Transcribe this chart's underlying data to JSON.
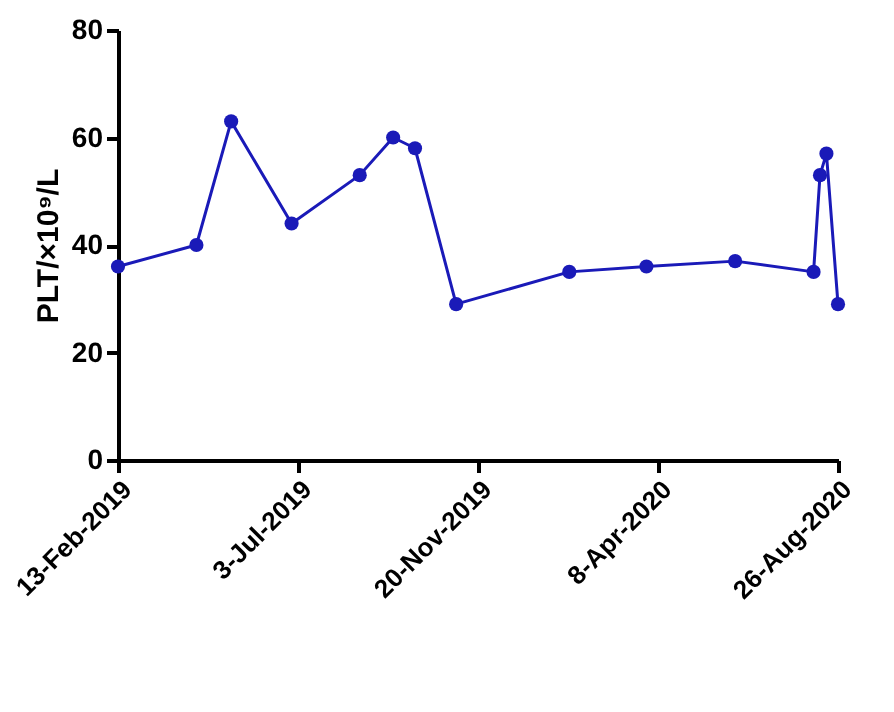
{
  "chart_data": {
    "type": "line",
    "ylabel": "PLT/×10⁹/L",
    "x": [
      "2019-02-13",
      "2019-04-15",
      "2019-05-12",
      "2019-06-28",
      "2019-08-20",
      "2019-09-15",
      "2019-10-02",
      "2019-11-03",
      "2020-01-30",
      "2020-03-30",
      "2020-06-07",
      "2020-08-07",
      "2020-08-12",
      "2020-08-17",
      "2020-08-26"
    ],
    "series": [
      {
        "color": "#1a1ab8",
        "values": [
          36,
          40,
          63,
          44,
          53,
          60,
          58,
          29,
          35,
          36,
          37,
          35,
          53,
          57,
          29
        ]
      }
    ],
    "xlim": [
      "2019-02-13",
      "2020-08-26"
    ],
    "xticks": [
      {
        "value": "2019-02-13",
        "label": "13-Feb-2019"
      },
      {
        "value": "2019-07-03",
        "label": "3-Jul-2019"
      },
      {
        "value": "2019-11-20",
        "label": "20-Nov-2019"
      },
      {
        "value": "2020-04-08",
        "label": "8-Apr-2020"
      },
      {
        "value": "2020-08-26",
        "label": "26-Aug-2020"
      }
    ],
    "ylim": [
      0,
      80
    ],
    "yticks": [
      0,
      20,
      40,
      60,
      80
    ],
    "grid": false,
    "marker": "circle",
    "line_style": "solid"
  }
}
